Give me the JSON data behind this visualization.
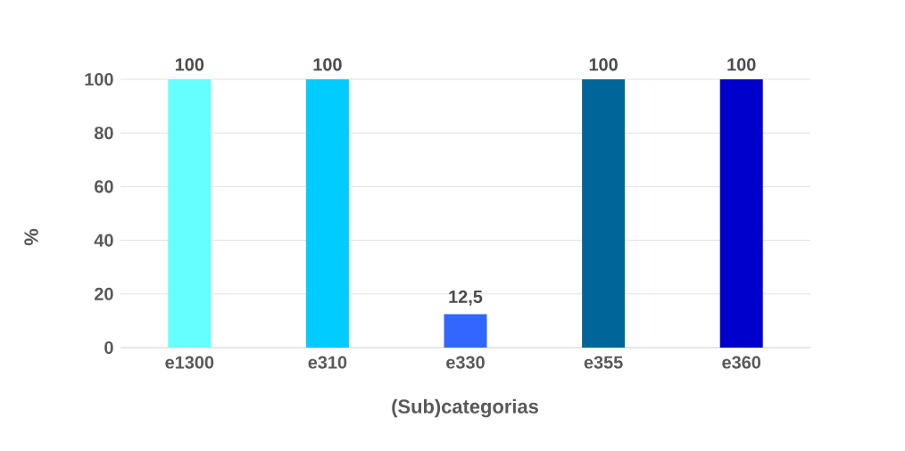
{
  "chart_data": {
    "type": "bar",
    "xlabel": "(Sub)categorias",
    "ylabel": "%",
    "categories": [
      "e1300",
      "e310",
      "e330",
      "e355",
      "e360"
    ],
    "values": [
      100,
      100,
      12.5,
      100,
      100
    ],
    "value_labels": [
      "100",
      "100",
      "12,5",
      "100",
      "100"
    ],
    "colors": [
      "#66ffff",
      "#00ccff",
      "#3366ff",
      "#006699",
      "#0000cc"
    ],
    "ylim": [
      0,
      100
    ],
    "yticks": [
      0,
      20,
      40,
      60,
      80,
      100
    ],
    "grid": "y"
  }
}
